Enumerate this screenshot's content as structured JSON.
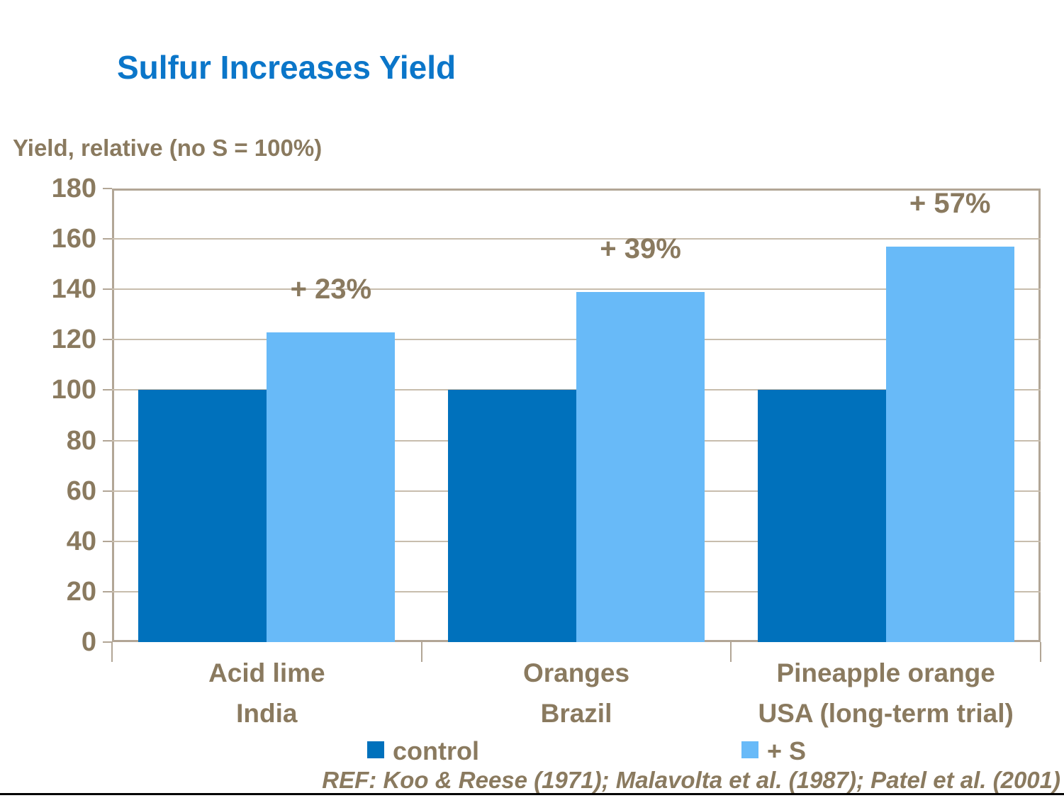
{
  "slide": {
    "title": "Sulfur Increases Yield",
    "reference": "REF: Koo & Reese (1971); Malavolta et al. (1987); Patel et al. (2001)"
  },
  "legend": [
    {
      "label": "control",
      "color": "#0071BC"
    },
    {
      "label": "+ S",
      "color": "#68BAF8"
    }
  ],
  "colors": {
    "title_blue": "#0B76C9",
    "text_brown": "#8A7A5F",
    "control_bar": "#0071BC",
    "plus_s_bar": "#68BAF8",
    "plot_border": "#B2A696",
    "gridline": "#C8BDAD",
    "bottom_rule": "#000000"
  },
  "chart_data": {
    "type": "bar",
    "title": "Sulfur Increases Yield",
    "xlabel": "",
    "ylabel": "Yield, relative (no S = 100%)",
    "ylim": [
      0,
      180
    ],
    "ytick_step": 20,
    "grid": true,
    "legend_position": "bottom",
    "categories": [
      {
        "crop": "Acid lime",
        "country": "India"
      },
      {
        "crop": "Oranges",
        "country": "Brazil"
      },
      {
        "crop": "Pineapple orange",
        "country": "USA (long-term trial)"
      }
    ],
    "series": [
      {
        "name": "control",
        "color": "#0071BC",
        "values": [
          100,
          100,
          100
        ]
      },
      {
        "name": "+ S",
        "color": "#68BAF8",
        "values": [
          123,
          139,
          157
        ]
      }
    ],
    "annotations": [
      "+ 23%",
      "+ 39%",
      "+ 57%"
    ]
  }
}
